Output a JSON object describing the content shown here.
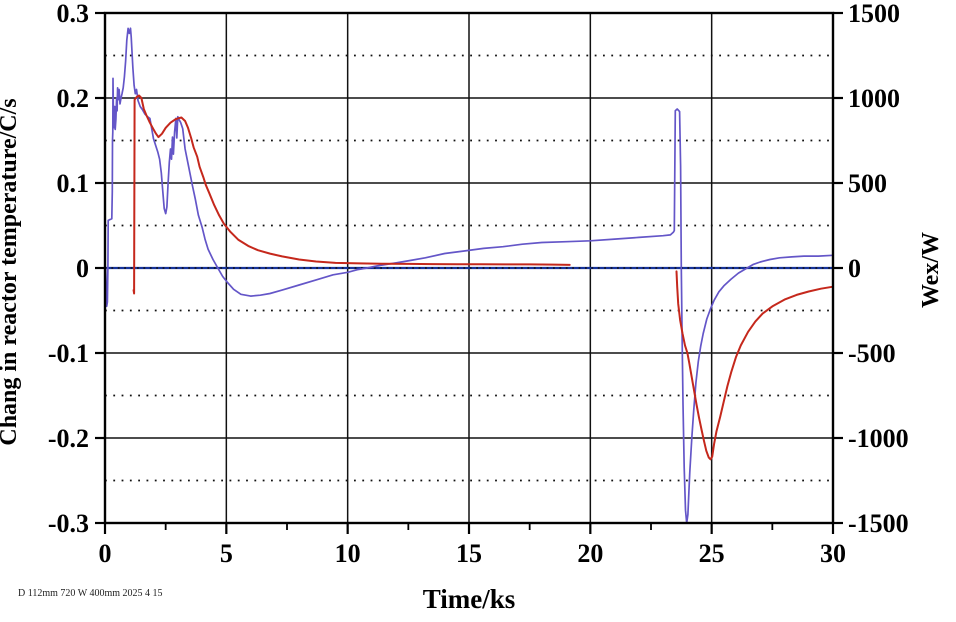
{
  "footnote": "D 112mm 720 W 400mm 2025 4 15",
  "chart_data": {
    "type": "line",
    "title": "",
    "xlabel": "Time/ks",
    "ylabel_left": "Chang in reactor temperature/C/s",
    "ylabel_right": "Wex/W",
    "xlim": [
      0,
      30
    ],
    "ylim_left": [
      -0.3,
      0.3
    ],
    "ylim_right": [
      -1500,
      1500
    ],
    "grid": {
      "vertical_x": [
        5,
        10,
        15,
        20,
        25
      ],
      "solid_y": [
        0.2,
        0.1,
        -0.1,
        -0.2
      ],
      "dotted_y": [
        0.25,
        0.15,
        0.05,
        -0.05,
        -0.15,
        -0.25
      ],
      "zero_y": 0
    },
    "x_axis": {
      "major": [
        0,
        5,
        10,
        15,
        20,
        25,
        30
      ],
      "labels": [
        "0",
        "5",
        "10",
        "15",
        "20",
        "25",
        "30"
      ],
      "minor": [
        2.5,
        7.5,
        12.5,
        17.5,
        22.5,
        27.5
      ]
    },
    "y_axis_left": {
      "major": [
        0.3,
        0.2,
        0.1,
        0,
        -0.1,
        -0.2,
        -0.3
      ],
      "labels": [
        "0.3",
        "0.2",
        "0.1",
        "0",
        "-0.1",
        "-0.2",
        "-0.3"
      ]
    },
    "y_axis_right": {
      "major": [
        1500,
        1000,
        500,
        0,
        -500,
        -1000,
        -1500
      ],
      "labels": [
        "1500",
        "1000",
        "500",
        "0",
        "-500",
        "-1000",
        "-1500"
      ]
    },
    "colors": {
      "grid": "#111111",
      "axis": "#000000",
      "zero_line": "#16339c",
      "temperature_series": "#6456c8",
      "wex_series": "#c5281c"
    },
    "series": [
      {
        "name": "reactor-temperature-rate",
        "axis": "left",
        "color": "#6456c8",
        "width": 1.7,
        "segments": [
          [
            [
              0.03,
              0.0
            ],
            [
              0.05,
              -0.03
            ],
            [
              0.07,
              -0.045
            ],
            [
              0.1,
              -0.04
            ],
            [
              0.11,
              -0.015
            ],
            [
              0.12,
              0.0
            ],
            [
              0.13,
              0.056
            ],
            [
              0.28,
              0.058
            ],
            [
              0.3,
              0.09
            ],
            [
              0.31,
              0.15
            ],
            [
              0.32,
              0.16
            ],
            [
              0.33,
              0.223
            ],
            [
              0.35,
              0.17
            ],
            [
              0.38,
              0.165
            ],
            [
              0.4,
              0.19
            ],
            [
              0.42,
              0.163
            ],
            [
              0.45,
              0.175
            ],
            [
              0.48,
              0.2
            ],
            [
              0.5,
              0.185
            ],
            [
              0.52,
              0.212
            ],
            [
              0.55,
              0.198
            ],
            [
              0.58,
              0.21
            ],
            [
              0.62,
              0.193
            ],
            [
              0.66,
              0.2
            ],
            [
              0.7,
              0.205
            ],
            [
              0.75,
              0.212
            ],
            [
              0.8,
              0.225
            ],
            [
              0.85,
              0.243
            ],
            [
              0.9,
              0.268
            ],
            [
              0.95,
              0.282
            ],
            [
              1.0,
              0.276
            ],
            [
              1.05,
              0.282
            ],
            [
              1.08,
              0.272
            ],
            [
              1.12,
              0.25
            ],
            [
              1.15,
              0.235
            ],
            [
              1.2,
              0.215
            ],
            [
              1.25,
              0.205
            ],
            [
              1.3,
              0.21
            ],
            [
              1.36,
              0.197
            ],
            [
              1.45,
              0.19
            ],
            [
              1.55,
              0.186
            ],
            [
              1.65,
              0.181
            ],
            [
              1.75,
              0.178
            ],
            [
              1.85,
              0.176
            ],
            [
              1.95,
              0.16
            ],
            [
              2.0,
              0.152
            ],
            [
              2.1,
              0.143
            ],
            [
              2.18,
              0.136
            ],
            [
              2.25,
              0.128
            ],
            [
              2.32,
              0.112
            ],
            [
              2.38,
              0.09
            ],
            [
              2.44,
              0.07
            ],
            [
              2.5,
              0.064
            ],
            [
              2.55,
              0.072
            ],
            [
              2.6,
              0.1
            ],
            [
              2.65,
              0.124
            ],
            [
              2.7,
              0.14
            ],
            [
              2.74,
              0.128
            ],
            [
              2.78,
              0.154
            ],
            [
              2.82,
              0.134
            ],
            [
              2.87,
              0.16
            ],
            [
              2.92,
              0.176
            ],
            [
              2.96,
              0.153
            ],
            [
              3.0,
              0.178
            ],
            [
              3.06,
              0.174
            ],
            [
              3.12,
              0.171
            ],
            [
              3.2,
              0.164
            ],
            [
              3.3,
              0.14
            ],
            [
              3.45,
              0.119
            ],
            [
              3.6,
              0.097
            ],
            [
              3.72,
              0.081
            ],
            [
              3.85,
              0.062
            ],
            [
              4.0,
              0.048
            ],
            [
              4.12,
              0.034
            ],
            [
              4.25,
              0.022
            ],
            [
              4.45,
              0.01
            ],
            [
              4.65,
              0.0
            ],
            [
              4.85,
              -0.01
            ],
            [
              5.05,
              -0.017
            ],
            [
              5.3,
              -0.025
            ],
            [
              5.6,
              -0.031
            ],
            [
              6.0,
              -0.033
            ],
            [
              6.4,
              -0.032
            ],
            [
              6.8,
              -0.03
            ],
            [
              7.3,
              -0.026
            ],
            [
              8.0,
              -0.02
            ],
            [
              8.7,
              -0.014
            ],
            [
              9.4,
              -0.008
            ],
            [
              10.0,
              -0.005
            ],
            [
              10.4,
              -0.002
            ],
            [
              10.8,
              0.0
            ],
            [
              11.3,
              0.003
            ],
            [
              12.0,
              0.006
            ],
            [
              12.6,
              0.009
            ],
            [
              13.2,
              0.012
            ],
            [
              14.0,
              0.017
            ],
            [
              14.8,
              0.02
            ],
            [
              15.6,
              0.023
            ],
            [
              16.4,
              0.025
            ],
            [
              17.2,
              0.028
            ],
            [
              18.0,
              0.03
            ],
            [
              19.0,
              0.031
            ],
            [
              20.0,
              0.032
            ],
            [
              21.0,
              0.034
            ],
            [
              22.0,
              0.036
            ],
            [
              23.0,
              0.038
            ],
            [
              23.3,
              0.039
            ],
            [
              23.42,
              0.042
            ],
            [
              23.46,
              0.044
            ],
            [
              23.5,
              0.185
            ],
            [
              23.58,
              0.187
            ],
            [
              23.68,
              0.184
            ],
            [
              23.72,
              0.12
            ],
            [
              23.75,
              0.0
            ],
            [
              23.78,
              -0.08
            ],
            [
              23.82,
              -0.16
            ],
            [
              23.87,
              -0.235
            ],
            [
              23.92,
              -0.285
            ],
            [
              23.97,
              -0.3
            ],
            [
              24.02,
              -0.29
            ],
            [
              24.06,
              -0.263
            ],
            [
              24.1,
              -0.24
            ],
            [
              24.18,
              -0.2
            ],
            [
              24.26,
              -0.168
            ],
            [
              24.35,
              -0.135
            ],
            [
              24.45,
              -0.11
            ],
            [
              24.55,
              -0.092
            ],
            [
              24.65,
              -0.077
            ],
            [
              24.8,
              -0.06
            ],
            [
              24.95,
              -0.048
            ],
            [
              25.1,
              -0.038
            ],
            [
              25.3,
              -0.028
            ],
            [
              25.5,
              -0.021
            ],
            [
              25.8,
              -0.013
            ],
            [
              26.1,
              -0.006
            ],
            [
              26.4,
              -0.001
            ],
            [
              26.7,
              0.004
            ],
            [
              27.0,
              0.007
            ],
            [
              27.4,
              0.01
            ],
            [
              27.8,
              0.012
            ],
            [
              28.3,
              0.013
            ],
            [
              28.8,
              0.014
            ],
            [
              29.4,
              0.014
            ],
            [
              30.0,
              0.015
            ]
          ]
        ]
      },
      {
        "name": "wex-power",
        "axis": "right",
        "color": "#c5281c",
        "width": 2.0,
        "segments": [
          [
            [
              1.18,
              -130
            ],
            [
              1.2,
              -150
            ],
            [
              1.22,
              990
            ],
            [
              1.3,
              1005
            ],
            [
              1.4,
              1015
            ],
            [
              1.5,
              1000
            ],
            [
              1.6,
              935
            ],
            [
              1.7,
              900
            ],
            [
              1.85,
              855
            ],
            [
              2.0,
              815
            ],
            [
              2.1,
              790
            ],
            [
              2.2,
              770
            ],
            [
              2.35,
              790
            ],
            [
              2.5,
              825
            ],
            [
              2.7,
              855
            ],
            [
              2.9,
              875
            ],
            [
              3.05,
              882
            ],
            [
              3.15,
              885
            ],
            [
              3.3,
              865
            ],
            [
              3.42,
              825
            ],
            [
              3.55,
              765
            ],
            [
              3.65,
              710
            ],
            [
              3.8,
              655
            ],
            [
              3.9,
              595
            ],
            [
              4.05,
              535
            ],
            [
              4.15,
              490
            ],
            [
              4.3,
              440
            ],
            [
              4.5,
              370
            ],
            [
              4.7,
              310
            ],
            [
              4.9,
              260
            ],
            [
              5.15,
              215
            ],
            [
              5.5,
              165
            ],
            [
              5.9,
              130
            ],
            [
              6.3,
              105
            ],
            [
              6.8,
              85
            ],
            [
              7.3,
              68
            ],
            [
              8.0,
              50
            ],
            [
              8.7,
              38
            ],
            [
              9.5,
              30
            ],
            [
              10.5,
              27
            ],
            [
              11.5,
              25
            ],
            [
              12.5,
              24
            ],
            [
              13.5,
              23
            ],
            [
              14.5,
              22
            ],
            [
              15.5,
              22
            ],
            [
              16.5,
              21
            ],
            [
              17.5,
              21
            ],
            [
              18.5,
              20
            ],
            [
              19.15,
              18
            ]
          ],
          [
            [
              23.55,
              -20
            ],
            [
              23.58,
              -110
            ],
            [
              23.62,
              -210
            ],
            [
              23.7,
              -305
            ],
            [
              23.8,
              -385
            ],
            [
              23.9,
              -455
            ],
            [
              24.0,
              -500
            ],
            [
              24.08,
              -560
            ],
            [
              24.18,
              -645
            ],
            [
              24.28,
              -725
            ],
            [
              24.38,
              -805
            ],
            [
              24.48,
              -880
            ],
            [
              24.58,
              -950
            ],
            [
              24.68,
              -1015
            ],
            [
              24.78,
              -1075
            ],
            [
              24.88,
              -1115
            ],
            [
              24.95,
              -1125
            ],
            [
              25.02,
              -1110
            ],
            [
              25.1,
              -1035
            ],
            [
              25.2,
              -960
            ],
            [
              25.35,
              -875
            ],
            [
              25.5,
              -785
            ],
            [
              25.65,
              -695
            ],
            [
              25.8,
              -615
            ],
            [
              26.0,
              -525
            ],
            [
              26.2,
              -455
            ],
            [
              26.5,
              -375
            ],
            [
              26.8,
              -315
            ],
            [
              27.1,
              -268
            ],
            [
              27.5,
              -226
            ],
            [
              28.0,
              -186
            ],
            [
              28.5,
              -158
            ],
            [
              29.0,
              -138
            ],
            [
              29.5,
              -122
            ],
            [
              30.0,
              -110
            ]
          ]
        ]
      }
    ]
  }
}
